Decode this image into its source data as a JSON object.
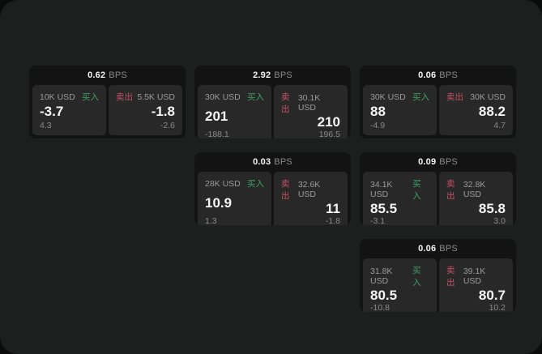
{
  "labels": {
    "bps": "BPS",
    "buy": "买入",
    "sell": "卖出"
  },
  "colors": {
    "page_bg": "#0b0b0b",
    "window_bg": "#1d1e1e",
    "card_bg": "#131313",
    "panel_bg": "#282828",
    "buy": "#3fa068",
    "sell": "#c35266",
    "text_primary": "#f5f5f5",
    "text_secondary": "#9b9b9b",
    "text_tertiary": "#8a8a8a"
  },
  "cards": [
    {
      "col": 1,
      "row": 1,
      "bps": "0.62",
      "buy": {
        "notional": "10K USD",
        "price": "-3.7",
        "delta": "4.3"
      },
      "sell": {
        "notional": "5.5K USD",
        "price": "-1.8",
        "delta": "-2.6"
      }
    },
    {
      "col": 2,
      "row": 1,
      "bps": "2.92",
      "buy": {
        "notional": "30K USD",
        "price": "201",
        "delta": "-188.1"
      },
      "sell": {
        "notional": "30.1K USD",
        "price": "210",
        "delta": "196.5"
      }
    },
    {
      "col": 3,
      "row": 1,
      "bps": "0.06",
      "buy": {
        "notional": "30K USD",
        "price": "88",
        "delta": "-4.9"
      },
      "sell": {
        "notional": "30K USD",
        "price": "88.2",
        "delta": "4.7"
      }
    },
    {
      "col": 2,
      "row": 2,
      "bps": "0.03",
      "buy": {
        "notional": "28K USD",
        "price": "10.9",
        "delta": "1.3"
      },
      "sell": {
        "notional": "32.6K USD",
        "price": "11",
        "delta": "-1.8"
      }
    },
    {
      "col": 3,
      "row": 2,
      "bps": "0.09",
      "buy": {
        "notional": "34.1K USD",
        "price": "85.5",
        "delta": "-3.1"
      },
      "sell": {
        "notional": "32.8K USD",
        "price": "85.8",
        "delta": "3.0"
      }
    },
    {
      "col": 3,
      "row": 3,
      "bps": "0.06",
      "buy": {
        "notional": "31.8K USD",
        "price": "80.5",
        "delta": "-10.8"
      },
      "sell": {
        "notional": "39.1K USD",
        "price": "80.7",
        "delta": "10.2"
      }
    }
  ]
}
